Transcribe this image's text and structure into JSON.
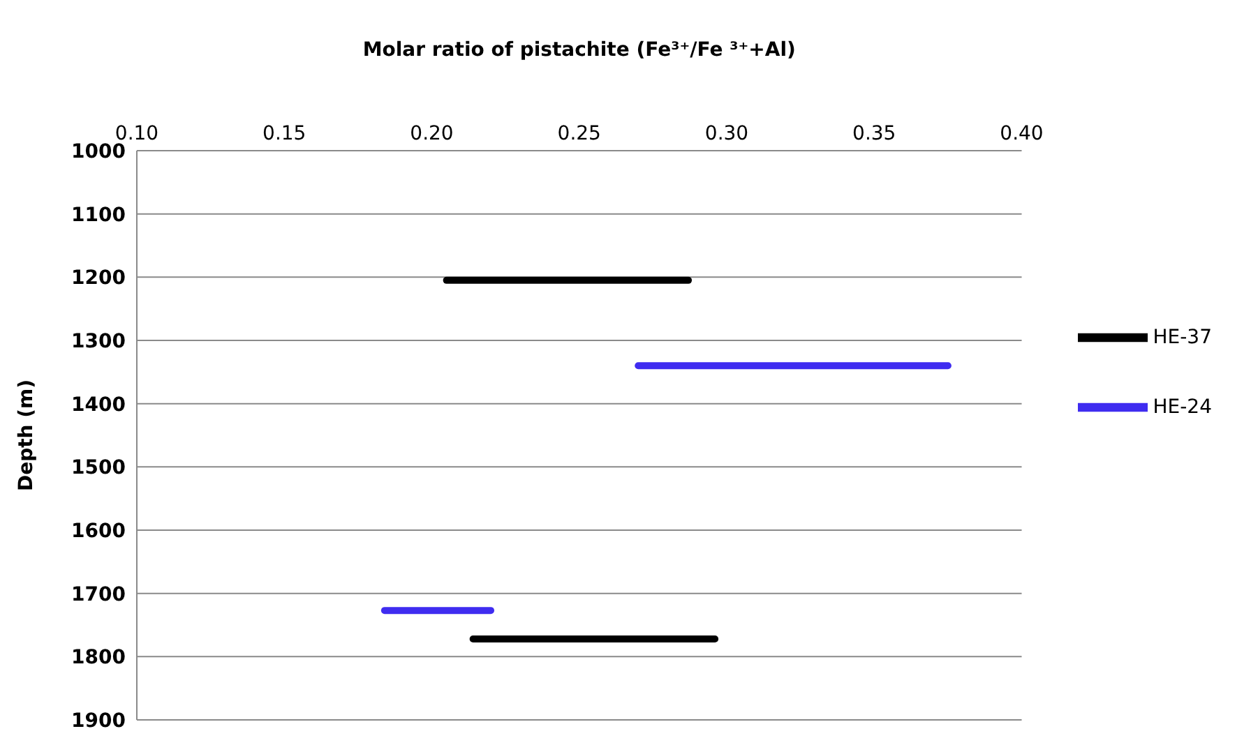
{
  "chart_data": {
    "type": "line",
    "xlabel": "Molar ratio of pistachite (Fe³⁺/Fe ³⁺+Al)",
    "ylabel": "Depth (m)",
    "xlim": [
      0.1,
      0.4
    ],
    "xticks": [
      {
        "value": 0.1,
        "label": "0.10"
      },
      {
        "value": 0.15,
        "label": "0.15"
      },
      {
        "value": 0.2,
        "label": "0.20"
      },
      {
        "value": 0.25,
        "label": "0.25"
      },
      {
        "value": 0.3,
        "label": "0.30"
      },
      {
        "value": 0.35,
        "label": "0.35"
      },
      {
        "value": 0.4,
        "label": "0.40"
      }
    ],
    "ylim": [
      1900,
      1000
    ],
    "yticks": [
      1000,
      1100,
      1200,
      1300,
      1400,
      1500,
      1600,
      1700,
      1800,
      1900
    ],
    "grid": "y",
    "legend": "right",
    "marker": "none",
    "line_style": "solid",
    "series": [
      {
        "name": "HE-37",
        "color": "#000000",
        "x": [
          0.205,
          0.287
        ],
        "values": [
          1205,
          1205
        ]
      },
      {
        "name": "HE-24",
        "color": "#3f2cf0",
        "x": [
          0.27,
          0.375
        ],
        "values": [
          1340,
          1340
        ]
      },
      {
        "color": "#000000",
        "x": [
          0.214,
          0.296
        ],
        "values": [
          1772,
          1772
        ]
      },
      {
        "color": "#3f2cf0",
        "x": [
          0.184,
          0.22
        ],
        "values": [
          1727,
          1727
        ]
      }
    ]
  }
}
